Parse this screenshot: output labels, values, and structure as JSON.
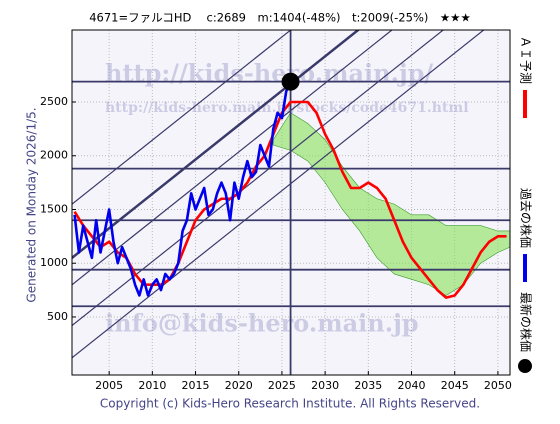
{
  "chart_data": {
    "type": "line",
    "title": "4671=ファルコHD　 c:2689　m:1404(-48%)　t:2009(-25%)　★★★",
    "side_note": "Generated on Monday 2026/1/5.",
    "footer": "Copyright (c) Kids-Hero Research Institute. All Rights Reserved.",
    "watermarks": [
      "http://kids-hero.main.jp/",
      "http://kids-hero.main.jp/stocks/code4671.html",
      "info@kids-hero.main.jp"
    ],
    "xlim": [
      2000.7,
      2051.4
    ],
    "ylim": [
      -40,
      3170
    ],
    "xticks": [
      2005,
      2010,
      2015,
      2020,
      2025,
      2030,
      2035,
      2040,
      2045,
      2050
    ],
    "yticks": [
      500,
      1000,
      1500,
      2000,
      2500
    ],
    "grid": true,
    "series": [
      {
        "name": "ＡＩ予測",
        "color": "#ff0000",
        "x": [
          2001,
          2002,
          2003,
          2004,
          2005,
          2006,
          2007,
          2008,
          2009,
          2010,
          2011,
          2012,
          2013,
          2014,
          2015,
          2016,
          2017,
          2018,
          2019,
          2020,
          2021,
          2022,
          2023,
          2024,
          2025,
          2026,
          2027,
          2028,
          2029,
          2030,
          2031,
          2032,
          2033,
          2034,
          2035,
          2036,
          2037,
          2038,
          2039,
          2040,
          2041,
          2042,
          2043,
          2044,
          2045,
          2046,
          2047,
          2048,
          2049,
          2050,
          2051
        ],
        "values": [
          1480,
          1350,
          1250,
          1150,
          1200,
          1100,
          1050,
          900,
          800,
          800,
          800,
          850,
          1000,
          1200,
          1400,
          1500,
          1550,
          1600,
          1600,
          1650,
          1750,
          1900,
          2000,
          2200,
          2400,
          2500,
          2500,
          2500,
          2400,
          2200,
          2050,
          1850,
          1700,
          1700,
          1750,
          1700,
          1600,
          1400,
          1200,
          1050,
          950,
          850,
          750,
          680,
          700,
          800,
          950,
          1100,
          1200,
          1250,
          1250
        ]
      },
      {
        "name": "過去の株価",
        "color": "#0000ee",
        "x": [
          2001,
          2001.5,
          2002,
          2002.5,
          2003,
          2003.5,
          2004,
          2004.5,
          2005,
          2005.5,
          2006,
          2006.5,
          2007,
          2007.5,
          2008,
          2008.5,
          2009,
          2009.5,
          2010,
          2010.5,
          2011,
          2011.5,
          2012,
          2012.5,
          2013,
          2013.5,
          2014,
          2014.5,
          2015,
          2015.5,
          2016,
          2016.5,
          2017,
          2017.5,
          2018,
          2018.5,
          2019,
          2019.5,
          2020,
          2020.5,
          2021,
          2021.5,
          2022,
          2022.5,
          2023,
          2023.5,
          2024,
          2024.5,
          2025,
          2025.5,
          2026
        ],
        "values": [
          1450,
          1100,
          1350,
          1200,
          1050,
          1400,
          1100,
          1300,
          1500,
          1200,
          1000,
          1150,
          1050,
          950,
          800,
          700,
          850,
          700,
          800,
          850,
          750,
          900,
          850,
          900,
          1000,
          1300,
          1400,
          1650,
          1500,
          1600,
          1700,
          1450,
          1500,
          1650,
          1750,
          1650,
          1400,
          1750,
          1600,
          1800,
          1950,
          1800,
          1850,
          2100,
          2000,
          1900,
          2250,
          2400,
          2350,
          2600,
          2689
        ]
      }
    ],
    "latest": {
      "name": "最新の株価",
      "color": "#000000",
      "x": 2026,
      "y": 2689
    },
    "band": {
      "color": "#7ee04a",
      "x": [
        2024,
        2026,
        2028,
        2030,
        2032,
        2034,
        2036,
        2038,
        2040,
        2042,
        2044,
        2046,
        2048,
        2050,
        2051.4
      ],
      "upper": [
        2150,
        2400,
        2300,
        2150,
        1900,
        1700,
        1600,
        1550,
        1450,
        1450,
        1350,
        1350,
        1350,
        1300,
        1300
      ],
      "lower": [
        2100,
        2050,
        1950,
        1750,
        1500,
        1300,
        1050,
        900,
        850,
        800,
        700,
        800,
        1000,
        1100,
        1150
      ]
    },
    "levels": [
      2690,
      1880,
      1400,
      940,
      600
    ],
    "level_color": "#3a3a6a",
    "vline": 2026,
    "trend_lines": [
      {
        "x": [
          2000.7,
          2051.4
        ],
        "y": [
          1550,
          4795
        ],
        "width": 1.2
      },
      {
        "x": [
          2000.7,
          2051.4
        ],
        "y": [
          1050,
          4295
        ],
        "width": 2.5
      },
      {
        "x": [
          2000.7,
          2051.4
        ],
        "y": [
          800,
          4045
        ],
        "width": 1.2
      },
      {
        "x": [
          2000.7,
          2051.4
        ],
        "y": [
          420,
          3665
        ],
        "width": 1.2
      },
      {
        "x": [
          2000.7,
          2051.4
        ],
        "y": [
          120,
          3365
        ],
        "width": 1.2
      }
    ]
  }
}
